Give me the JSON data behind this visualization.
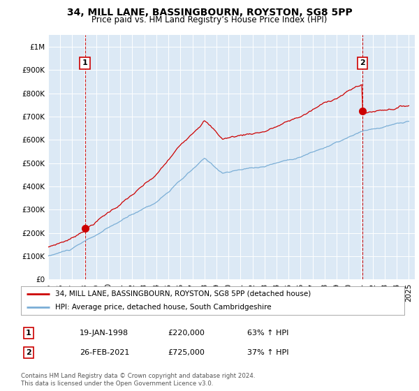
{
  "title": "34, MILL LANE, BASSINGBOURN, ROYSTON, SG8 5PP",
  "subtitle": "Price paid vs. HM Land Registry’s House Price Index (HPI)",
  "legend_line1": "34, MILL LANE, BASSINGBOURN, ROYSTON, SG8 5PP (detached house)",
  "legend_line2": "HPI: Average price, detached house, South Cambridgeshire",
  "annotation1": [
    "1",
    "19-JAN-1998",
    "£220,000",
    "63% ↑ HPI"
  ],
  "annotation2": [
    "2",
    "26-FEB-2021",
    "£725,000",
    "37% ↑ HPI"
  ],
  "footnote": "Contains HM Land Registry data © Crown copyright and database right 2024.\nThis data is licensed under the Open Government Licence v3.0.",
  "sale1_year": 1998.05,
  "sale1_price": 220000,
  "sale2_year": 2021.15,
  "sale2_price": 725000,
  "red_color": "#cc0000",
  "blue_color": "#7aaed6",
  "background_color": "#dce9f5",
  "ylim": [
    0,
    1050000
  ],
  "xlim_start": 1995.0,
  "xlim_end": 2025.5
}
